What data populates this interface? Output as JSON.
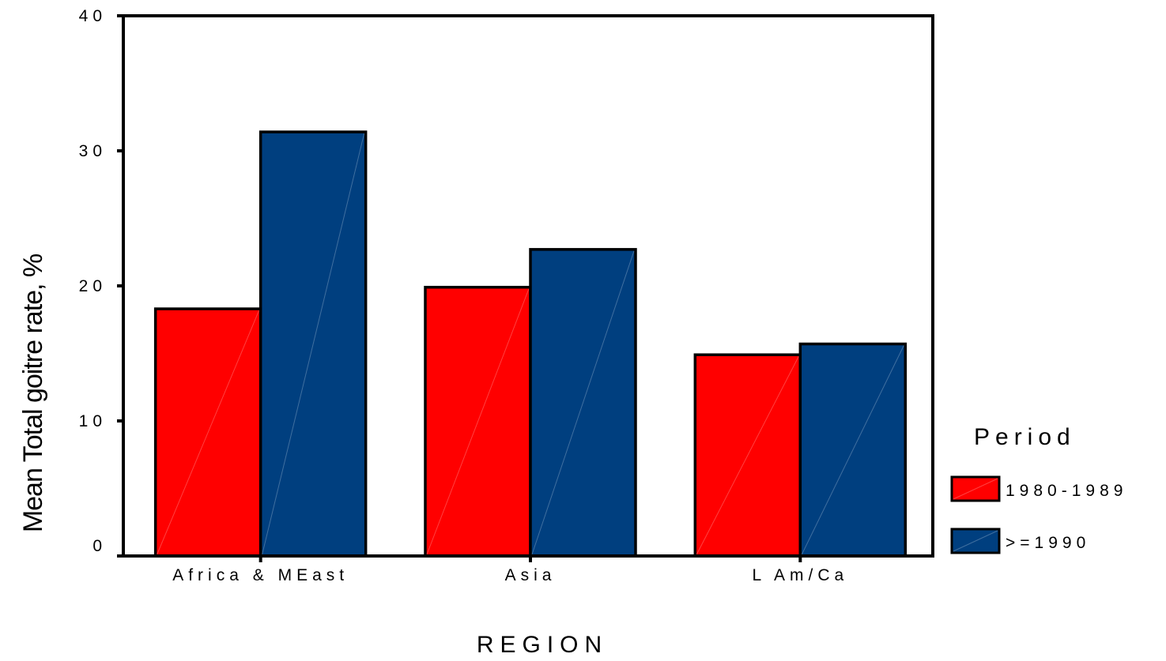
{
  "chart_data": {
    "type": "bar",
    "title": "",
    "xlabel": "REGION",
    "ylabel": "Mean Total goitre rate, %",
    "categories": [
      "Africa & MEast",
      "Asia",
      "L Am/Ca"
    ],
    "series": [
      {
        "name": "1980-1989",
        "color": "#ff0000",
        "values": [
          18.3,
          19.9,
          14.9
        ]
      },
      {
        "name": ">=1990",
        "color": "#003f7f",
        "values": [
          31.4,
          22.7,
          15.7
        ]
      }
    ],
    "ylim": [
      0,
      40
    ],
    "yticks": [
      0,
      10,
      20,
      30,
      40
    ],
    "grid": false,
    "legend": {
      "title": "Period",
      "position": "right"
    }
  }
}
